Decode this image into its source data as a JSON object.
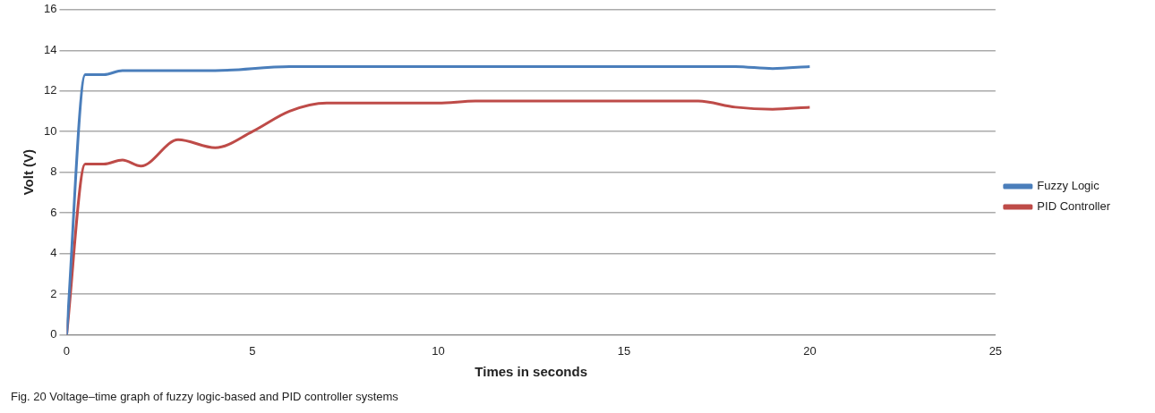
{
  "chart_data": {
    "type": "line",
    "xlabel": "Times in seconds",
    "ylabel": "Volt (V)",
    "xlim": [
      0,
      25
    ],
    "xticks": [
      0,
      5,
      10,
      15,
      20,
      25
    ],
    "ylim": [
      0,
      16
    ],
    "yticks": [
      0,
      2,
      4,
      6,
      8,
      10,
      12,
      14,
      16
    ],
    "grid": "y",
    "legend": "right",
    "marker": "none",
    "line_style": "solid",
    "annotations": [
      "Fig. 20 Voltage–time graph of fuzzy logic-based and PID controller systems"
    ],
    "series": [
      {
        "name": "Fuzzy Logic",
        "color": "#4a7ebb",
        "x": [
          0,
          0.5,
          1,
          1.5,
          4,
          6,
          18,
          19,
          20
        ],
        "values": [
          0,
          12.8,
          12.8,
          13,
          13,
          13.2,
          13.2,
          13.1,
          13.2
        ]
      },
      {
        "name": "PID Controller",
        "color": "#be4b48",
        "x": [
          0,
          0.5,
          1,
          1.5,
          2,
          3,
          4,
          5,
          6,
          7,
          10,
          11,
          17,
          18,
          19,
          20
        ],
        "values": [
          0,
          8.4,
          8.4,
          8.6,
          8.3,
          9.6,
          9.2,
          10,
          11,
          11.4,
          11.4,
          11.5,
          11.5,
          11.2,
          11.1,
          11.2
        ]
      }
    ]
  }
}
